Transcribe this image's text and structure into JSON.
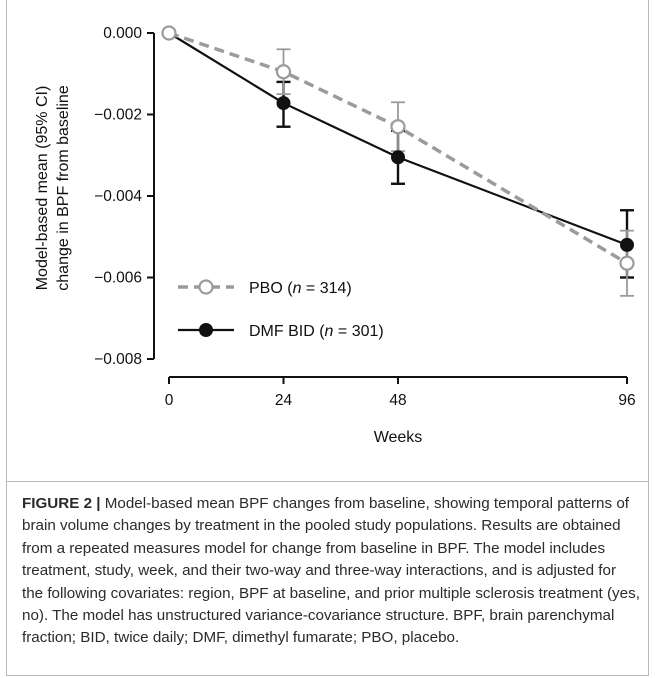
{
  "chart_data": {
    "type": "line",
    "x": [
      0,
      24,
      48,
      96
    ],
    "xlabel": "Weeks",
    "ylabel_line1": "Model-based mean (95% CI)",
    "ylabel_line2": "change in BPF from baseline",
    "xlim": [
      0,
      96
    ],
    "ylim": [
      -0.008,
      0.0
    ],
    "yticks": [
      "0.000",
      "−0.002",
      "−0.004",
      "−0.006",
      "−0.008"
    ],
    "ytick_values": [
      0.0,
      -0.002,
      -0.004,
      -0.006,
      -0.008
    ],
    "xticks": [
      "0",
      "24",
      "48",
      "96"
    ],
    "grid": false,
    "legend_position": "bottom-left",
    "series": [
      {
        "name": "PBO (n = 314)",
        "legend_prefix": "PBO (",
        "legend_n": "n",
        "legend_suffix": " = 314)",
        "marker": "open-circle",
        "line_style": "dashed",
        "color": "#9b9b9b",
        "values": [
          0.0,
          -0.00095,
          -0.0023,
          -0.00565
        ],
        "ci_low": [
          0.0,
          -0.0015,
          -0.0029,
          -0.00645
        ],
        "ci_high": [
          0.0,
          -0.0004,
          -0.0017,
          -0.00485
        ]
      },
      {
        "name": "DMF BID (n = 301)",
        "legend_prefix": "DMF BID (",
        "legend_n": "n",
        "legend_suffix": " = 301)",
        "marker": "filled-circle",
        "line_style": "solid",
        "color": "#111111",
        "values": [
          0.0,
          -0.00172,
          -0.00305,
          -0.0052
        ],
        "ci_low": [
          0.0,
          -0.0023,
          -0.0037,
          -0.006
        ],
        "ci_high": [
          0.0,
          -0.0012,
          -0.0024,
          -0.00435
        ]
      }
    ]
  },
  "caption": {
    "label": "FIGURE 2 |",
    "text": " Model-based mean BPF changes from baseline, showing temporal patterns of brain volume changes by treatment in the pooled study populations. Results are obtained from a repeated measures model for change from baseline in BPF. The model includes treatment, study, week, and their two-way and three-way interactions, and is adjusted for the following covariates: region, BPF at baseline, and prior multiple sclerosis treatment (yes, no). The model has unstructured variance-covariance structure. BPF, brain parenchymal fraction; BID, twice daily; DMF, dimethyl fumarate; PBO, placebo."
  }
}
